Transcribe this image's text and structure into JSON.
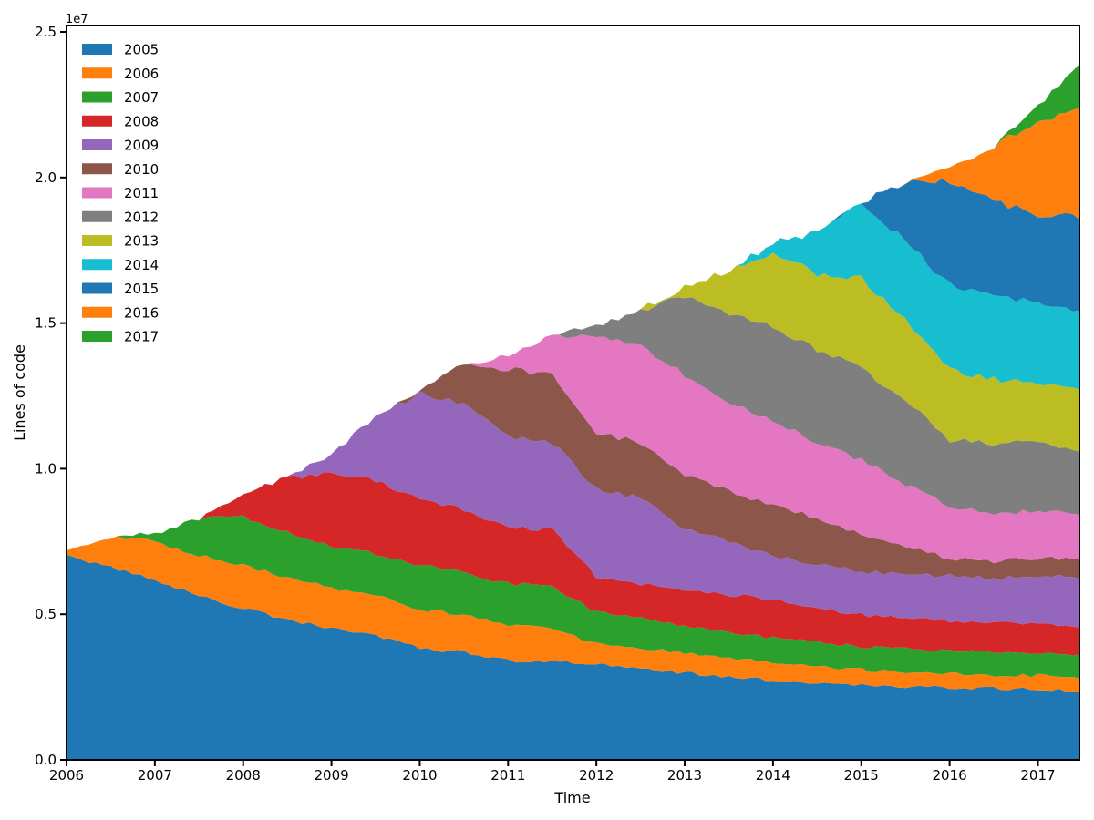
{
  "figure": {
    "background": "#ffffff"
  },
  "axes": {
    "xlabel": "Time",
    "ylabel": "Lines of code",
    "offset_text": "1e7",
    "xtick_labels": [
      "2006",
      "2007",
      "2008",
      "2009",
      "2010",
      "2011",
      "2012",
      "2013",
      "2014",
      "2015",
      "2016",
      "2017"
    ],
    "xtick_values": [
      2006,
      2007,
      2008,
      2009,
      2010,
      2011,
      2012,
      2013,
      2014,
      2015,
      2016,
      2017
    ],
    "ytick_labels": [
      "0.0",
      "0.5",
      "1.0",
      "1.5",
      "2.0",
      "2.5"
    ],
    "ytick_values": [
      0,
      5000000,
      10000000,
      15000000,
      20000000,
      25000000
    ],
    "xlim": [
      2006,
      2017.47
    ],
    "ylim": [
      0,
      25220000
    ],
    "spine_color": "#000000",
    "tick_length": 7,
    "line_width": 2
  },
  "chart_data": {
    "type": "area",
    "stacked": true,
    "title": "",
    "xlabel": "Time",
    "ylabel": "Lines of code",
    "legend_position": "upper left",
    "grid": false,
    "y_unit": "lines of code (1e7 scale)",
    "x": [
      2006,
      2006.5,
      2007,
      2007.5,
      2008,
      2008.5,
      2009,
      2009.5,
      2010,
      2010.5,
      2011,
      2011.5,
      2012,
      2012.5,
      2013,
      2013.5,
      2014,
      2014.5,
      2015,
      2015.5,
      2016,
      2016.5,
      2017,
      2017.47
    ],
    "series": [
      {
        "name": "2005",
        "color": "#1f77b4",
        "values": [
          7050000,
          6600000,
          6170000,
          5600000,
          5230000,
          4820000,
          4510000,
          4250000,
          3830000,
          3700000,
          3400000,
          3350000,
          3300000,
          3150000,
          2990000,
          2850000,
          2730000,
          2650000,
          2580000,
          2520000,
          2470000,
          2450000,
          2420000,
          2370000
        ]
      },
      {
        "name": "2006",
        "color": "#ff7f0e",
        "values": [
          150000,
          1050000,
          1310000,
          1400000,
          1470000,
          1430000,
          1400000,
          1380000,
          1350000,
          1300000,
          1250000,
          1200000,
          680000,
          700000,
          680000,
          650000,
          580000,
          550000,
          520000,
          480000,
          470000,
          460000,
          470000,
          470000
        ]
      },
      {
        "name": "2007",
        "color": "#2ca02c",
        "values": [
          0,
          0,
          310000,
          1260000,
          1660000,
          1550000,
          1410000,
          1470000,
          1520000,
          1450000,
          1400000,
          1400000,
          1100000,
          1050000,
          890000,
          900000,
          880000,
          850000,
          780000,
          800000,
          780000,
          790000,
          780000,
          780000
        ]
      },
      {
        "name": "2008",
        "color": "#d62728",
        "values": [
          0,
          0,
          0,
          0,
          840000,
          1870000,
          2530000,
          2500000,
          2240000,
          2150000,
          1950000,
          1950000,
          1200000,
          1150000,
          1250000,
          1280000,
          1310000,
          1200000,
          1090000,
          1050000,
          1050000,
          1020000,
          990000,
          990000
        ]
      },
      {
        "name": "2009",
        "color": "#9467bd",
        "values": [
          0,
          0,
          0,
          0,
          0,
          0,
          650000,
          2200000,
          3650000,
          3600000,
          3080000,
          3000000,
          3020000,
          2950000,
          2140000,
          1800000,
          1510000,
          1450000,
          1500000,
          1520000,
          1550000,
          1500000,
          1670000,
          1670000
        ]
      },
      {
        "name": "2010",
        "color": "#8c564b",
        "values": [
          0,
          0,
          0,
          0,
          0,
          0,
          0,
          0,
          50000,
          1430000,
          2340000,
          2300000,
          1930000,
          1900000,
          1870000,
          1750000,
          1720000,
          1600000,
          1300000,
          950000,
          600000,
          600000,
          600000,
          620000
        ]
      },
      {
        "name": "2011",
        "color": "#e377c2",
        "values": [
          0,
          0,
          0,
          0,
          0,
          0,
          0,
          0,
          0,
          0,
          470000,
          1400000,
          3340000,
          3300000,
          3390000,
          3000000,
          2920000,
          2600000,
          2510000,
          2150000,
          1770000,
          1650000,
          1610000,
          1600000
        ]
      },
      {
        "name": "2012",
        "color": "#7f7f7f",
        "values": [
          0,
          0,
          0,
          0,
          0,
          0,
          0,
          0,
          0,
          0,
          0,
          0,
          360000,
          1260000,
          2720000,
          3100000,
          3230000,
          3200000,
          3180000,
          2900000,
          2300000,
          2400000,
          2400000,
          2110000
        ]
      },
      {
        "name": "2013",
        "color": "#bcbd22",
        "values": [
          0,
          0,
          0,
          0,
          0,
          0,
          0,
          0,
          0,
          0,
          0,
          0,
          0,
          0,
          310000,
          1500000,
          2510000,
          2600000,
          3070000,
          2700000,
          2400000,
          2200000,
          2030000,
          2050000
        ]
      },
      {
        "name": "2014",
        "color": "#17becf",
        "values": [
          0,
          0,
          0,
          0,
          0,
          0,
          0,
          0,
          0,
          0,
          0,
          0,
          0,
          0,
          0,
          0,
          360000,
          1400000,
          2560000,
          2750000,
          2920000,
          2850000,
          2710000,
          2760000
        ]
      },
      {
        "name": "2015",
        "color": "#1f77b4",
        "values": [
          0,
          0,
          0,
          0,
          0,
          0,
          0,
          0,
          0,
          0,
          0,
          0,
          0,
          0,
          0,
          0,
          0,
          0,
          50000,
          2000000,
          3590000,
          3250000,
          3020000,
          3230000
        ]
      },
      {
        "name": "2016",
        "color": "#ff7f0e",
        "values": [
          0,
          0,
          0,
          0,
          0,
          0,
          0,
          0,
          0,
          0,
          0,
          0,
          0,
          0,
          0,
          0,
          0,
          0,
          0,
          0,
          420000,
          1900000,
          3290000,
          3650000
        ]
      },
      {
        "name": "2017",
        "color": "#2ca02c",
        "values": [
          0,
          0,
          0,
          0,
          0,
          0,
          0,
          0,
          0,
          0,
          0,
          0,
          0,
          0,
          0,
          0,
          0,
          0,
          0,
          0,
          0,
          0,
          410000,
          1620000
        ]
      }
    ]
  },
  "legend": {
    "frame": false,
    "swatch_width": 33,
    "swatch_height": 12
  }
}
